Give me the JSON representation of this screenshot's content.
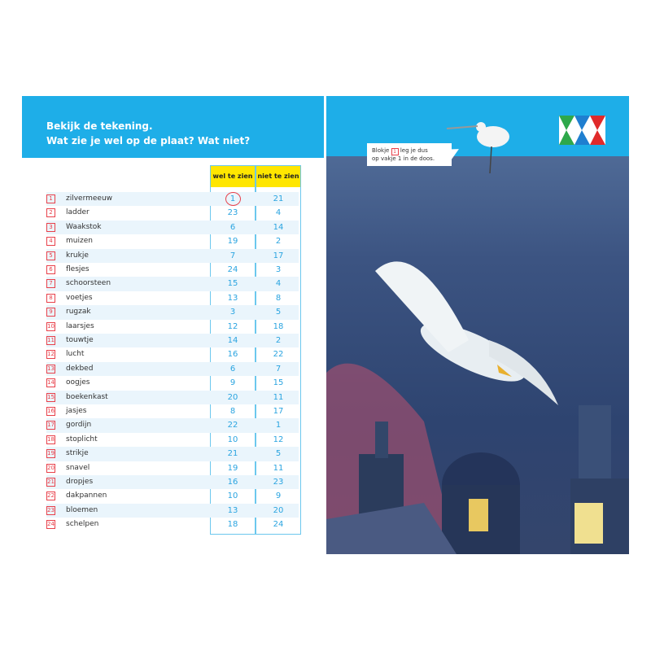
{
  "header": {
    "line1": "Bekijk de tekening.",
    "line2": "Wat zie je wel op de plaat? Wat niet?"
  },
  "columns": {
    "wel": "wel te zien",
    "niet": "niet te zien"
  },
  "rows": [
    {
      "n": "1",
      "word": "zilvermeeuw",
      "wel": "1",
      "niet": "21"
    },
    {
      "n": "2",
      "word": "ladder",
      "wel": "23",
      "niet": "4"
    },
    {
      "n": "3",
      "word": "Waakstok",
      "wel": "6",
      "niet": "14"
    },
    {
      "n": "4",
      "word": "muizen",
      "wel": "19",
      "niet": "2"
    },
    {
      "n": "5",
      "word": "krukje",
      "wel": "7",
      "niet": "17"
    },
    {
      "n": "6",
      "word": "flesjes",
      "wel": "24",
      "niet": "3"
    },
    {
      "n": "7",
      "word": "schoorsteen",
      "wel": "15",
      "niet": "4"
    },
    {
      "n": "8",
      "word": "voetjes",
      "wel": "13",
      "niet": "8"
    },
    {
      "n": "9",
      "word": "rugzak",
      "wel": "3",
      "niet": "5"
    },
    {
      "n": "10",
      "word": "laarsjes",
      "wel": "12",
      "niet": "18"
    },
    {
      "n": "11",
      "word": "touwtje",
      "wel": "14",
      "niet": "2"
    },
    {
      "n": "12",
      "word": "lucht",
      "wel": "16",
      "niet": "22"
    },
    {
      "n": "13",
      "word": "dekbed",
      "wel": "6",
      "niet": "7"
    },
    {
      "n": "14",
      "word": "oogjes",
      "wel": "9",
      "niet": "15"
    },
    {
      "n": "15",
      "word": "boekenkast",
      "wel": "20",
      "niet": "11"
    },
    {
      "n": "16",
      "word": "jasjes",
      "wel": "8",
      "niet": "17"
    },
    {
      "n": "17",
      "word": "gordijn",
      "wel": "22",
      "niet": "1"
    },
    {
      "n": "18",
      "word": "stoplicht",
      "wel": "10",
      "niet": "12"
    },
    {
      "n": "19",
      "word": "strikje",
      "wel": "21",
      "niet": "5"
    },
    {
      "n": "20",
      "word": "snavel",
      "wel": "19",
      "niet": "11"
    },
    {
      "n": "21",
      "word": "dropjes",
      "wel": "16",
      "niet": "23"
    },
    {
      "n": "22",
      "word": "dakpannen",
      "wel": "10",
      "niet": "9"
    },
    {
      "n": "23",
      "word": "bloemen",
      "wel": "13",
      "niet": "20"
    },
    {
      "n": "24",
      "word": "schelpen",
      "wel": "18",
      "niet": "24"
    }
  ],
  "bubble": {
    "pre": "Blokje",
    "box": "1",
    "post": "leg je dus",
    "line2": "op vakje 1 in de doos."
  },
  "colors": {
    "header_blue": "#1eaee8",
    "number_blue": "#2aa4e0",
    "accent_red": "#e8404a",
    "header_yellow": "#ffe600"
  },
  "icons": {
    "logo": "colored-diamond-pattern-logo"
  }
}
